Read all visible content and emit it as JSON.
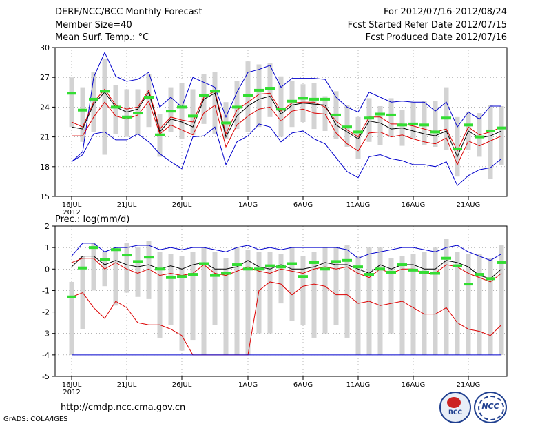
{
  "header": {
    "title": "DERF/NCC/BCC Monthly Forecast",
    "member_size": "Member Size=40",
    "variable": "Mean Surf. Temp.: °C",
    "period": "For 2012/07/16-2012/08/24",
    "refer_date": "Fcst Started Refer Date 2012/07/15",
    "produced_date": "Fcst Produced Date 2012/07/16"
  },
  "footer": {
    "url": "http://cmdp.ncc.cma.gov.cn",
    "grads": "GrADS: COLA/IGES",
    "logo_left_text": "BCC",
    "logo_right_text": "NCC"
  },
  "colors": {
    "mean": "#000000",
    "ens_max": "#0000cc",
    "ens_min": "#0000cc",
    "spread": "#dd0000",
    "box": "#d3d3d3",
    "median": "#33dd33"
  },
  "chart_data": [
    {
      "type": "box-line",
      "title": "Mean Surf. Temp.: °C",
      "ylim": [
        15,
        30
      ],
      "yticks": [
        15,
        18,
        21,
        24,
        27,
        30
      ],
      "xlim": [
        0,
        40
      ],
      "xticks": [
        {
          "day": 1,
          "label": "16JUL",
          "sub": "2012"
        },
        {
          "day": 6,
          "label": "21JUL"
        },
        {
          "day": 11,
          "label": "26JUL"
        },
        {
          "day": 17,
          "label": "1AUG"
        },
        {
          "day": 22,
          "label": "6AUG"
        },
        {
          "day": 27,
          "label": "11AUG"
        },
        {
          "day": 32,
          "label": "16AUG"
        },
        {
          "day": 37,
          "label": "21AUG"
        }
      ],
      "boxes": [
        [
          1,
          22.0,
          27.0,
          25.4
        ],
        [
          2,
          20.5,
          26.0,
          23.7
        ],
        [
          3,
          21.5,
          27.5,
          24.8
        ],
        [
          4,
          19.2,
          28.9,
          25.6
        ],
        [
          5,
          21.3,
          26.2,
          24.0
        ],
        [
          6,
          21.0,
          25.8,
          23.0
        ],
        [
          7,
          21.2,
          25.8,
          23.4
        ],
        [
          8,
          22.0,
          27.3,
          25.0
        ],
        [
          9,
          19.0,
          23.3,
          21.2
        ],
        [
          10,
          21.5,
          26.0,
          23.6
        ],
        [
          11,
          20.8,
          26.4,
          24.0
        ],
        [
          12,
          21.2,
          25.8,
          23.1
        ],
        [
          13,
          22.3,
          27.3,
          25.2
        ],
        [
          14,
          21.3,
          27.5,
          25.6
        ],
        [
          15,
          20.8,
          24.5,
          22.4
        ],
        [
          16,
          21.8,
          26.6,
          24.0
        ],
        [
          17,
          21.5,
          28.6,
          25.2
        ],
        [
          18,
          22.0,
          28.3,
          25.7
        ],
        [
          19,
          23.0,
          28.4,
          25.9
        ],
        [
          20,
          21.0,
          27.1,
          23.8
        ],
        [
          21,
          22.0,
          26.6,
          24.6
        ],
        [
          22,
          22.5,
          26.3,
          24.9
        ],
        [
          23,
          21.8,
          26.4,
          24.8
        ],
        [
          24,
          21.6,
          25.1,
          24.8
        ],
        [
          25,
          20.8,
          25.6,
          23.2
        ],
        [
          26,
          20.0,
          24.2,
          22.0
        ],
        [
          27,
          18.8,
          23.0,
          21.5
        ],
        [
          28,
          20.5,
          24.9,
          22.9
        ],
        [
          29,
          20.2,
          24.1,
          23.3
        ],
        [
          30,
          21.0,
          24.9,
          23.2
        ],
        [
          31,
          20.1,
          23.7,
          22.2
        ],
        [
          32,
          20.8,
          24.5,
          22.3
        ],
        [
          33,
          20.2,
          24.6,
          22.2
        ],
        [
          34,
          20.0,
          24.6,
          21.5
        ],
        [
          35,
          19.7,
          26.0,
          22.9
        ],
        [
          36,
          17.0,
          23.0,
          19.8
        ],
        [
          37,
          19.7,
          23.5,
          22.2
        ],
        [
          38,
          19.0,
          23.4,
          21.0
        ],
        [
          39,
          16.8,
          24.2,
          21.6
        ],
        [
          40,
          18.2,
          24.1,
          21.9
        ]
      ],
      "series": [
        {
          "name": "ens_max",
          "values": [
            18.5,
            19.5,
            27.0,
            29.5,
            27.1,
            26.6,
            26.8,
            27.5,
            24.0,
            25.0,
            24.0,
            27.0,
            26.5,
            26.0,
            23.0,
            25.5,
            27.5,
            27.8,
            28.2,
            26.0,
            26.9,
            26.9,
            26.9,
            26.8,
            25.0,
            24.0,
            23.5,
            25.5,
            25.0,
            24.5,
            24.6,
            24.5,
            24.5,
            23.6,
            24.5,
            22.0,
            23.5,
            22.8,
            24.1,
            24.1
          ]
        },
        {
          "name": "spread_upper",
          "values": [
            22.5,
            22.0,
            24.5,
            25.8,
            24.2,
            23.8,
            24.0,
            25.7,
            21.8,
            23.0,
            22.7,
            22.5,
            25.0,
            25.6,
            21.3,
            23.7,
            24.5,
            25.3,
            25.4,
            23.6,
            24.4,
            24.5,
            24.5,
            24.0,
            22.6,
            21.7,
            21.0,
            23.0,
            23.0,
            22.3,
            22.3,
            22.1,
            21.8,
            21.5,
            21.8,
            19.6,
            22.0,
            21.2,
            21.5,
            22.0
          ]
        },
        {
          "name": "mean",
          "values": [
            22.0,
            21.8,
            24.3,
            25.5,
            24.0,
            23.5,
            23.8,
            25.5,
            21.5,
            22.8,
            22.5,
            22.0,
            24.8,
            25.4,
            21.0,
            23.1,
            24.1,
            24.8,
            25.1,
            23.3,
            24.2,
            24.4,
            24.3,
            24.2,
            22.2,
            21.5,
            20.8,
            22.6,
            22.4,
            21.8,
            21.9,
            21.6,
            21.3,
            21.1,
            21.6,
            19.0,
            21.6,
            20.9,
            21.1,
            21.6
          ]
        },
        {
          "name": "spread_lower",
          "values": [
            21.1,
            21.1,
            23.0,
            24.5,
            23.1,
            22.8,
            23.2,
            24.6,
            21.3,
            22.2,
            21.7,
            21.2,
            23.4,
            24.2,
            20.0,
            22.2,
            23.1,
            23.8,
            24.0,
            22.6,
            23.6,
            23.8,
            23.4,
            23.3,
            21.4,
            20.3,
            19.6,
            21.4,
            21.5,
            21.0,
            21.2,
            20.8,
            20.5,
            20.3,
            20.9,
            18.2,
            20.6,
            20.1,
            20.6,
            21.1
          ]
        },
        {
          "name": "ens_min",
          "values": [
            18.5,
            19.2,
            21.3,
            21.5,
            20.7,
            20.7,
            21.3,
            20.5,
            19.3,
            18.5,
            17.8,
            21.0,
            21.1,
            22.0,
            18.2,
            20.5,
            21.1,
            22.3,
            22.0,
            20.5,
            21.4,
            21.6,
            20.8,
            20.3,
            18.9,
            17.5,
            16.9,
            19.0,
            19.2,
            18.8,
            18.6,
            18.2,
            18.2,
            18.0,
            18.5,
            16.1,
            17.1,
            17.7,
            17.9,
            18.8
          ]
        }
      ]
    },
    {
      "type": "box-line",
      "title": "Prec.: log(mm/d)",
      "ylim": [
        -5,
        2
      ],
      "yticks": [
        -5,
        -4,
        -3,
        -2,
        -1,
        0,
        1,
        2
      ],
      "xlim": [
        0,
        40
      ],
      "xticks": [
        {
          "day": 1,
          "label": "16JUL",
          "sub": "2012"
        },
        {
          "day": 6,
          "label": "21JUL"
        },
        {
          "day": 11,
          "label": "26JUL"
        },
        {
          "day": 17,
          "label": "1AUG"
        },
        {
          "day": 22,
          "label": "6AUG"
        },
        {
          "day": 27,
          "label": "11AUG"
        },
        {
          "day": 32,
          "label": "16AUG"
        },
        {
          "day": 37,
          "label": "21AUG"
        }
      ],
      "boxes": [
        [
          1,
          -4.0,
          -0.6,
          -1.3
        ],
        [
          2,
          -2.8,
          0.6,
          0.05
        ],
        [
          3,
          -1.0,
          1.2,
          1.0
        ],
        [
          4,
          -0.8,
          0.8,
          0.45
        ],
        [
          5,
          -1.7,
          1.0,
          0.9
        ],
        [
          6,
          -1.1,
          1.2,
          0.65
        ],
        [
          7,
          -1.3,
          1.0,
          0.35
        ],
        [
          8,
          -1.4,
          1.3,
          0.55
        ],
        [
          9,
          -3.2,
          0.8,
          0.0
        ],
        [
          10,
          -2.6,
          0.7,
          -0.4
        ],
        [
          11,
          -3.8,
          0.6,
          -0.35
        ],
        [
          12,
          -3.3,
          0.8,
          -0.25
        ],
        [
          13,
          -4.0,
          1.0,
          0.25
        ],
        [
          14,
          -2.6,
          0.8,
          -0.3
        ],
        [
          15,
          -4.0,
          0.5,
          -0.2
        ],
        [
          16,
          -4.0,
          1.0,
          0.2
        ],
        [
          17,
          -4.0,
          0.9,
          0.0
        ],
        [
          18,
          -3.0,
          0.8,
          0.0
        ],
        [
          19,
          -3.0,
          0.8,
          0.15
        ],
        [
          20,
          -1.6,
          0.7,
          0.1
        ],
        [
          21,
          -2.4,
          1.0,
          0.25
        ],
        [
          22,
          -2.6,
          0.6,
          -0.35
        ],
        [
          23,
          -3.2,
          0.8,
          0.3
        ],
        [
          24,
          -3.0,
          1.0,
          0.0
        ],
        [
          25,
          -2.6,
          1.0,
          0.35
        ],
        [
          26,
          -3.2,
          1.1,
          0.4
        ],
        [
          27,
          -4.0,
          0.6,
          0.1
        ],
        [
          28,
          -4.0,
          1.0,
          -0.25
        ],
        [
          29,
          -4.0,
          1.0,
          0.0
        ],
        [
          30,
          -3.0,
          0.5,
          -0.15
        ],
        [
          31,
          -4.0,
          0.6,
          0.2
        ],
        [
          32,
          -4.0,
          0.7,
          -0.05
        ],
        [
          33,
          -4.0,
          0.8,
          -0.15
        ],
        [
          34,
          -4.0,
          1.0,
          -0.2
        ],
        [
          35,
          -4.0,
          1.4,
          0.5
        ],
        [
          36,
          -4.0,
          0.8,
          0.15
        ],
        [
          37,
          -4.0,
          0.7,
          -0.7
        ],
        [
          38,
          -4.0,
          0.7,
          -0.25
        ],
        [
          39,
          -4.0,
          0.5,
          -0.45
        ],
        [
          40,
          -4.0,
          1.1,
          0.3
        ]
      ],
      "series": [
        {
          "name": "ens_max",
          "values": [
            0.6,
            1.2,
            1.2,
            0.8,
            1.0,
            1.0,
            1.1,
            1.1,
            0.9,
            1.0,
            0.9,
            1.0,
            1.0,
            0.9,
            0.8,
            1.0,
            1.1,
            0.9,
            1.0,
            0.9,
            1.0,
            1.0,
            1.0,
            1.0,
            1.0,
            0.9,
            0.5,
            0.7,
            0.8,
            0.9,
            1.0,
            1.0,
            0.9,
            0.8,
            1.0,
            1.1,
            0.8,
            0.6,
            0.4,
            0.7
          ]
        },
        {
          "name": "mean",
          "values": [
            0.1,
            0.6,
            0.6,
            0.2,
            0.4,
            0.2,
            0.1,
            0.2,
            0.0,
            0.15,
            0.0,
            0.2,
            0.3,
            0.0,
            0.0,
            0.1,
            0.4,
            0.1,
            0.0,
            0.2,
            0.0,
            0.0,
            0.1,
            0.3,
            0.2,
            0.2,
            0.0,
            -0.2,
            0.2,
            0.0,
            0.2,
            0.2,
            0.0,
            0.0,
            0.4,
            0.3,
            0.1,
            -0.3,
            -0.45,
            0.0
          ]
        },
        {
          "name": "spread_upper",
          "values": [
            0.3,
            0.5,
            0.5,
            0.0,
            0.3,
            0.0,
            -0.2,
            0.0,
            -0.3,
            -0.2,
            -0.3,
            -0.2,
            0.2,
            -0.2,
            -0.3,
            -0.1,
            0.1,
            -0.1,
            -0.2,
            0.0,
            -0.1,
            -0.2,
            0.0,
            0.1,
            0.0,
            0.1,
            -0.2,
            -0.4,
            0.0,
            -0.2,
            0.0,
            0.0,
            -0.2,
            -0.2,
            0.2,
            0.1,
            -0.2,
            -0.4,
            -0.6,
            -0.2
          ]
        },
        {
          "name": "spread_lower",
          "values": [
            -1.3,
            -1.1,
            -1.8,
            -2.3,
            -1.5,
            -1.8,
            -2.5,
            -2.5,
            -2.5,
            -2.8,
            -3.1,
            -4.0,
            -4.0,
            -4.0,
            -4.0,
            -4.0,
            -4.0,
            -4.0,
            -4.0,
            -4.0,
            -4.0,
            -4.0,
            -4.0,
            -4.0,
            -4.0,
            -4.0,
            -4.0,
            -4.0,
            -4.0,
            -4.0,
            -4.0,
            -4.0,
            -4.0,
            -4.0,
            -4.0,
            -4.0,
            -4.0,
            -4.0,
            -4.0,
            -4.0
          ]
        },
        {
          "name": "spread_lower_visible",
          "values": [
            -1.3,
            -1.1,
            -1.8,
            -2.3,
            -1.5,
            -1.8,
            -2.5,
            -2.6,
            -2.6,
            -2.8,
            -3.1,
            -4.0,
            -4.0,
            -4.0,
            -4.0,
            -4.0,
            -4.0,
            -1.0,
            -0.6,
            -0.7,
            -1.2,
            -0.8,
            -0.7,
            -0.8,
            -1.2,
            -1.2,
            -1.6,
            -1.5,
            -1.7,
            -1.6,
            -1.5,
            -1.8,
            -2.1,
            -2.1,
            -1.8,
            -2.5,
            -2.8,
            -2.9,
            -3.1,
            -2.6
          ]
        },
        {
          "name": "ens_min",
          "values": [
            -4.0,
            -4.0,
            -4.0,
            -4.0,
            -4.0,
            -4.0,
            -4.0,
            -4.0,
            -4.0,
            -4.0,
            -4.0,
            -4.0,
            -4.0,
            -4.0,
            -4.0,
            -4.0,
            -4.0,
            -4.0,
            -4.0,
            -4.0,
            -4.0,
            -4.0,
            -4.0,
            -4.0,
            -4.0,
            -4.0,
            -4.0,
            -4.0,
            -4.0,
            -4.0,
            -4.0,
            -4.0,
            -4.0,
            -4.0,
            -4.0,
            -4.0,
            -4.0,
            -4.0,
            -4.0,
            -4.0
          ]
        }
      ]
    }
  ]
}
